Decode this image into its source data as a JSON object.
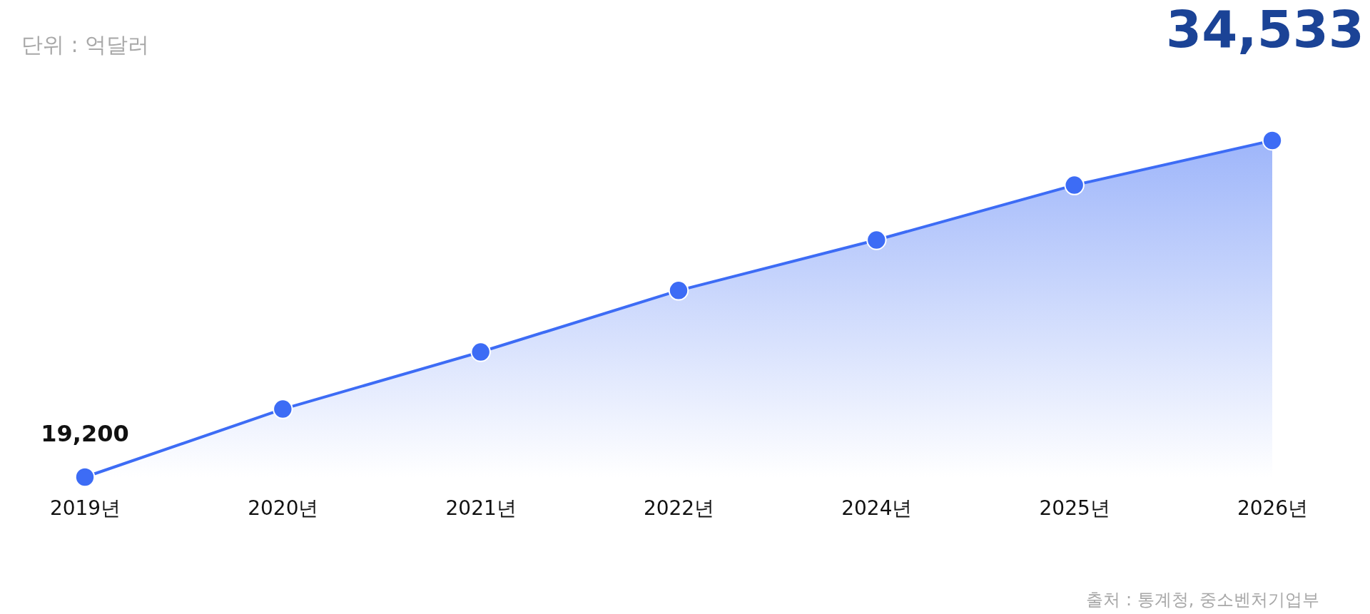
{
  "chart_data": {
    "type": "area",
    "categories": [
      "2019년",
      "2020년",
      "2021년",
      "2022년",
      "2024년",
      "2025년",
      "2026년"
    ],
    "series": [
      {
        "color": "#3d6cf5",
        "values": [
          19200,
          22300,
          24900,
          27700,
          30000,
          32500,
          34533
        ],
        "value_labels": [
          "19,200",
          null,
          null,
          null,
          null,
          null,
          "34,533"
        ]
      }
    ],
    "marker": "circle",
    "annotations": [
      "단위 : 억달러",
      "출처 : 통계청, 중소벤처기업부"
    ]
  }
}
